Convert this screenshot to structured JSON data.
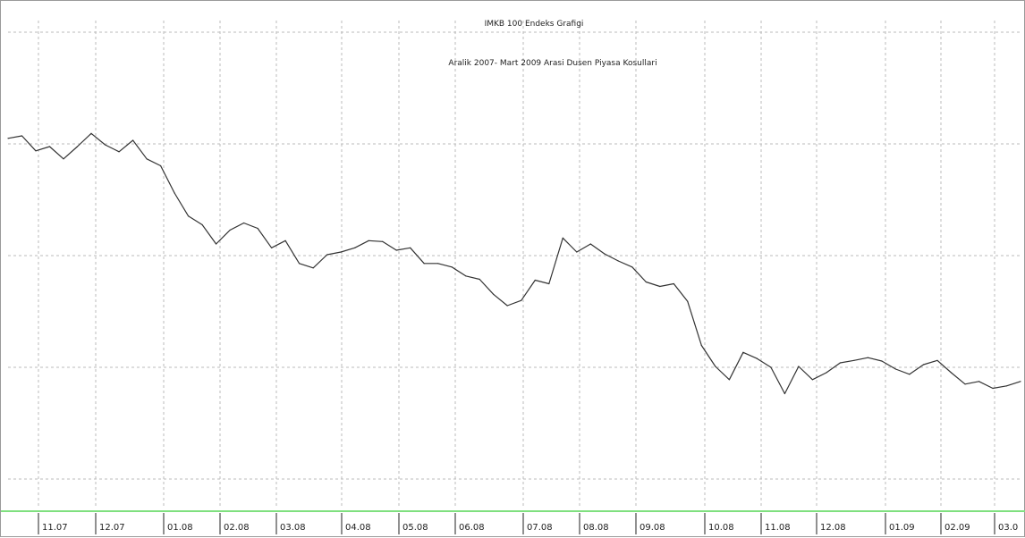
{
  "chart_data": {
    "type": "line",
    "title": "IMKB 100 Endeks Grafigi",
    "subtitle": "Aralik 2007- Mart 2009 Arasi Dusen Piyasa Kosullari",
    "xlabel": "",
    "ylabel": "",
    "grid": true,
    "x_tick_labels": [
      "11.07",
      "12.07",
      "01.08",
      "02.08",
      "03.08",
      "04.08",
      "05.08",
      "06.08",
      "07.08",
      "08.08",
      "09.08",
      "10.08",
      "11.08",
      "12.08",
      "01.09",
      "02.09",
      "03.0"
    ],
    "series": [
      {
        "values": [
          52.5,
          53.6,
          46.9,
          48.8,
          43.3,
          48.8,
          54.7,
          49.6,
          46.5,
          51.6,
          43.3,
          40.2,
          28.0,
          17.7,
          13.8,
          5.2,
          11.4,
          14.6,
          12.2,
          3.5,
          6.7,
          -3.5,
          -5.5,
          0.4,
          1.6,
          3.5,
          6.7,
          6.3,
          2.4,
          3.5,
          -3.5,
          -3.5,
          -5.1,
          -9.1,
          -10.6,
          -17.3,
          -22.4,
          -20.1,
          -11.0,
          -12.6,
          7.9,
          1.6,
          5.2,
          0.8,
          -2.4,
          -5.1,
          -11.8,
          -13.8,
          -12.6,
          -20.5,
          -40.2,
          -49.6,
          -55.5,
          -43.3,
          -46.1,
          -50.0,
          -61.8,
          -49.6,
          -55.5,
          -52.4,
          -48.0,
          -46.9,
          -45.7,
          -47.2,
          -50.8,
          -53.1,
          -48.8,
          -46.9,
          -52.4,
          -57.5,
          -56.3,
          -59.4,
          -58.3,
          -56.3
        ]
      }
    ],
    "line_color": "#333333",
    "gridline_color": "#bbbbbb",
    "baseline_color": "#7fe07f"
  }
}
